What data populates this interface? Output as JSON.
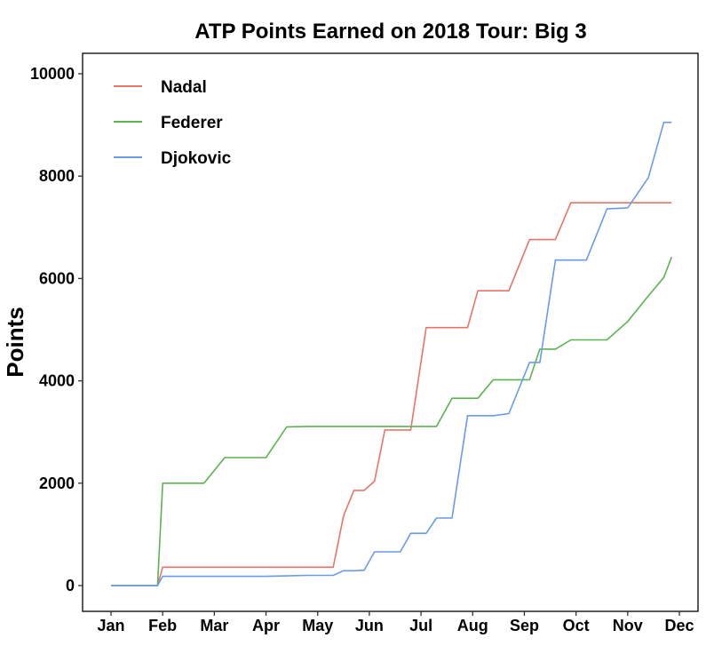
{
  "chart_data": {
    "type": "line",
    "title": "ATP Points Earned on 2018 Tour: Big 3",
    "xlabel": "",
    "ylabel": "Points",
    "x_ticks": [
      "Jan",
      "Feb",
      "Mar",
      "Apr",
      "May",
      "Jun",
      "Jul",
      "Aug",
      "Sep",
      "Oct",
      "Nov",
      "Dec"
    ],
    "y_ticks": [
      0,
      2000,
      4000,
      6000,
      8000,
      10000
    ],
    "xlim": [
      0,
      11
    ],
    "ylim": [
      -500,
      10500
    ],
    "grid": false,
    "legend_position": "top-left",
    "x_unit": "month index (Jan = 0)",
    "series": [
      {
        "name": "Nadal",
        "color": "#E7756A",
        "x": [
          0,
          0.7,
          0.9,
          1.0,
          1.4,
          1.8,
          2.2,
          2.6,
          3.0,
          3.4,
          3.8,
          4.2,
          4.3,
          4.5,
          4.7,
          4.9,
          5.1,
          5.3,
          5.6,
          5.8,
          6.1,
          6.3,
          6.6,
          6.9,
          7.1,
          7.4,
          7.7,
          8.1,
          8.3,
          8.6,
          8.9,
          9.2,
          9.6,
          10.0,
          10.4,
          10.7,
          10.85
        ],
        "y": [
          0,
          0,
          0,
          360,
          360,
          360,
          360,
          360,
          360,
          360,
          360,
          360,
          360,
          1360,
          1860,
          1860,
          2040,
          3040,
          3040,
          3040,
          5040,
          5040,
          5040,
          5040,
          5760,
          5760,
          5760,
          6760,
          6760,
          6760,
          7480,
          7480,
          7480,
          7480,
          7480,
          7480,
          7480
        ]
      },
      {
        "name": "Federer",
        "color": "#5BB450",
        "x": [
          0,
          0.7,
          0.9,
          1.0,
          1.4,
          1.8,
          2.2,
          2.6,
          3.0,
          3.4,
          3.8,
          4.2,
          4.3,
          4.5,
          4.7,
          4.9,
          5.1,
          5.3,
          5.6,
          5.8,
          6.1,
          6.3,
          6.6,
          6.9,
          7.1,
          7.4,
          7.7,
          8.1,
          8.3,
          8.6,
          8.9,
          9.2,
          9.6,
          10.0,
          10.4,
          10.7,
          10.85
        ],
        "y": [
          0,
          0,
          0,
          2000,
          2000,
          2000,
          2500,
          2500,
          2500,
          3100,
          3110,
          3110,
          3110,
          3110,
          3110,
          3110,
          3110,
          3110,
          3110,
          3110,
          3110,
          3110,
          3660,
          3660,
          3660,
          4020,
          4020,
          4020,
          4620,
          4620,
          4800,
          4800,
          4800,
          5160,
          5660,
          6020,
          6420
        ]
      },
      {
        "name": "Djokovic",
        "color": "#6A9BEA",
        "x": [
          0,
          0.7,
          0.9,
          1.0,
          1.4,
          1.8,
          2.2,
          2.6,
          3.0,
          3.4,
          3.8,
          4.2,
          4.3,
          4.5,
          4.7,
          4.9,
          5.1,
          5.3,
          5.6,
          5.8,
          6.1,
          6.3,
          6.6,
          6.9,
          7.1,
          7.4,
          7.7,
          8.1,
          8.3,
          8.6,
          8.9,
          9.2,
          9.6,
          10.0,
          10.4,
          10.7,
          10.85
        ],
        "y": [
          0,
          0,
          0,
          180,
          180,
          180,
          180,
          180,
          180,
          190,
          200,
          200,
          200,
          290,
          290,
          300,
          660,
          660,
          660,
          1020,
          1020,
          1320,
          1320,
          3320,
          3320,
          3320,
          3360,
          4360,
          4360,
          6360,
          6360,
          6360,
          7360,
          7380,
          7970,
          9050,
          9050
        ]
      }
    ]
  }
}
